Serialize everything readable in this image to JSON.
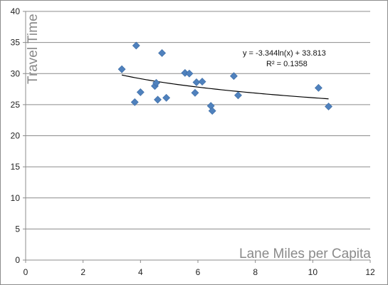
{
  "chart_data": {
    "type": "scatter",
    "title": "",
    "xlabel": "Lane Miles per Capita",
    "ylabel": "Travel Time",
    "xlim": [
      0,
      12
    ],
    "ylim": [
      0,
      40
    ],
    "xticks": [
      0,
      2,
      4,
      6,
      8,
      10,
      12
    ],
    "yticks": [
      0,
      5,
      10,
      15,
      20,
      25,
      30,
      35,
      40
    ],
    "grid": "horizontal",
    "legend": "none",
    "marker_color": "#4f81bd",
    "trendline_color": "#000000",
    "points": [
      {
        "x": 3.35,
        "y": 30.7
      },
      {
        "x": 3.8,
        "y": 25.4
      },
      {
        "x": 3.85,
        "y": 34.5
      },
      {
        "x": 4.0,
        "y": 27.0
      },
      {
        "x": 4.5,
        "y": 28.0
      },
      {
        "x": 4.55,
        "y": 28.5
      },
      {
        "x": 4.6,
        "y": 25.8
      },
      {
        "x": 4.75,
        "y": 33.3
      },
      {
        "x": 4.9,
        "y": 26.1
      },
      {
        "x": 5.55,
        "y": 30.1
      },
      {
        "x": 5.7,
        "y": 30.0
      },
      {
        "x": 5.9,
        "y": 26.9
      },
      {
        "x": 5.95,
        "y": 28.6
      },
      {
        "x": 6.15,
        "y": 28.7
      },
      {
        "x": 6.45,
        "y": 24.8
      },
      {
        "x": 6.5,
        "y": 24.0
      },
      {
        "x": 7.25,
        "y": 29.6
      },
      {
        "x": 7.4,
        "y": 26.5
      },
      {
        "x": 10.2,
        "y": 27.7
      },
      {
        "x": 10.55,
        "y": 24.7
      }
    ],
    "trendline": {
      "type": "logarithmic",
      "a": -3.344,
      "b": 33.813,
      "x_range": [
        3.35,
        10.55
      ],
      "equation": "y = -3.344ln(x) + 33.813",
      "r_squared": "R² = 0.1358"
    }
  }
}
